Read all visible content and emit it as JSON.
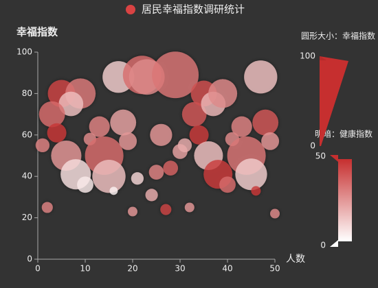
{
  "chart_data": {
    "type": "scatter",
    "title": "居民幸福指数调研统计",
    "x_label": "人数",
    "y_label": "幸福指数",
    "xlim": [
      0,
      50
    ],
    "xticks": [
      0,
      10,
      20,
      30,
      40,
      50
    ],
    "ylim": [
      0,
      100
    ],
    "yticks": [
      0,
      20,
      40,
      60,
      80,
      100
    ],
    "grid": false,
    "series": [
      {
        "name": "居民幸福指数调研统计",
        "color": "#d94343",
        "x": [
          5,
          9,
          7,
          3,
          4,
          1,
          6,
          8,
          10,
          2,
          13,
          11,
          14,
          15,
          16,
          17,
          18,
          19,
          20,
          21,
          22,
          23,
          24,
          25,
          26,
          27,
          28,
          29,
          30,
          31,
          32,
          33,
          34,
          35,
          36,
          37,
          38,
          39,
          40,
          41,
          43,
          44,
          45,
          46,
          47,
          48,
          49,
          50
        ],
        "values": [
          80,
          80,
          75,
          70,
          61,
          55,
          50,
          41,
          36,
          25,
          64,
          58,
          50,
          40,
          33,
          88,
          66,
          57,
          23,
          39,
          89,
          88,
          31,
          42,
          60,
          24,
          44,
          89,
          52,
          55,
          25,
          70,
          60,
          80,
          50,
          75,
          41,
          80,
          36,
          58,
          64,
          50,
          41,
          33,
          88,
          66,
          57,
          22
        ],
        "size": [
          57,
          63,
          51,
          54,
          40,
          29,
          63,
          63,
          34,
          23,
          43,
          26,
          80,
          69,
          17,
          66,
          54,
          37,
          20,
          26,
          80,
          74,
          26,
          31,
          46,
          23,
          31,
          97,
          31,
          29,
          20,
          51,
          40,
          54,
          60,
          51,
          60,
          60,
          34,
          29,
          43,
          80,
          66,
          20,
          69,
          54,
          37,
          20
        ],
        "health": [
          45,
          32,
          15,
          35,
          48,
          30,
          25,
          8,
          5,
          30,
          30,
          28,
          35,
          15,
          3,
          12,
          22,
          25,
          25,
          10,
          35,
          28,
          20,
          30,
          25,
          45,
          38,
          33,
          22,
          20,
          25,
          40,
          47,
          42,
          15,
          17,
          47,
          28,
          35,
          28,
          30,
          33,
          12,
          48,
          15,
          40,
          25,
          28
        ]
      }
    ],
    "visual_maps": [
      {
        "title": "圆形大小：幸福指数",
        "range": [
          0,
          100
        ],
        "color": "#c62f2f"
      },
      {
        "title": "明暗：健康指数",
        "range": [
          0,
          50
        ],
        "colors": [
          "#ffffff",
          "#c62f2f"
        ]
      }
    ]
  }
}
